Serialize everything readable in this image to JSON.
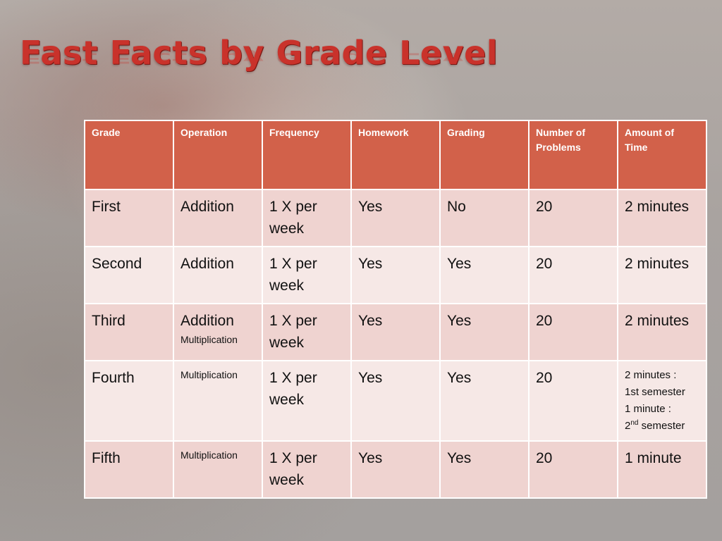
{
  "title": "Fast Facts by Grade Level",
  "table": {
    "headers": [
      "Grade",
      "Operation",
      "Frequency",
      "Homework",
      "Grading",
      "Number of Problems",
      "Amount of Time"
    ],
    "rows": [
      {
        "grade": "First",
        "operation": "Addition",
        "operation_extra": "",
        "frequency": "1 X per week",
        "homework": "Yes",
        "grading": "No",
        "problems": "20",
        "time": "2 minutes"
      },
      {
        "grade": "Second",
        "operation": "Addition",
        "operation_extra": "",
        "frequency": "1 X per week",
        "homework": "Yes",
        "grading": "Yes",
        "problems": "20",
        "time": "2 minutes"
      },
      {
        "grade": "Third",
        "operation": "Addition",
        "operation_extra": "Multiplication",
        "frequency": "1 X per week",
        "homework": "Yes",
        "grading": "Yes",
        "problems": "20",
        "time": "2 minutes"
      },
      {
        "grade": "Fourth",
        "operation": "Multiplication",
        "operation_extra": "",
        "frequency": "1 X per week",
        "homework": "Yes",
        "grading": "Yes",
        "problems": "20",
        "time_note": {
          "line1": "2 minutes :",
          "line2": "1st semester",
          "line3": "1 minute :",
          "line4_num": "2",
          "line4_sup": "nd",
          "line4_rest": " semester"
        }
      },
      {
        "grade": "Fifth",
        "operation": "Multiplication",
        "operation_extra": "",
        "frequency": "1 X per week",
        "homework": "Yes",
        "grading": "Yes",
        "problems": "20",
        "time": "1 minute"
      }
    ]
  },
  "colors": {
    "title": "#c9322b",
    "header_bg": "#d2614a",
    "row_odd": "#efd3d0",
    "row_even": "#f6e8e6"
  }
}
